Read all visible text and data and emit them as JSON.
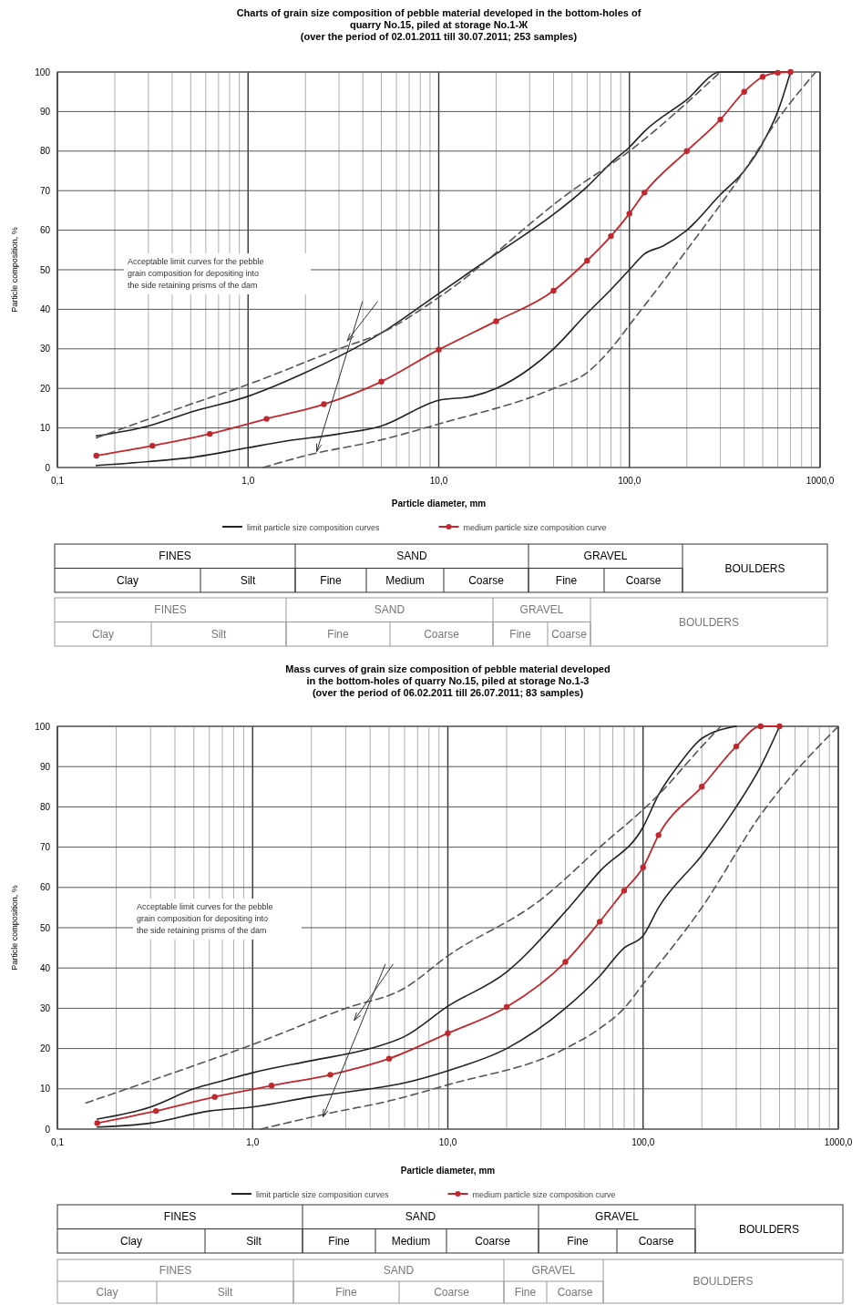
{
  "chart_data": [
    {
      "type": "line",
      "title": "Charts of grain size composition of pebble material developed in the bottom-holes of quarry No.15, piled at storage No.1-Ж",
      "subtitle": "(over the period of 02.01.2011 till 30.07.2011; 253 samples)",
      "xlabel": "Particle diameter, mm",
      "ylabel": "Particle composition, %",
      "log": "x",
      "grid": true,
      "legend": "bottom",
      "xlim": [
        0.1,
        1000
      ],
      "ylim": [
        0,
        100
      ],
      "xticks": [
        {
          "value": 0.1,
          "label": "0,1"
        },
        {
          "value": 0.2,
          "label": null
        },
        {
          "value": 0.3,
          "label": null
        },
        {
          "value": 0.4,
          "label": null
        },
        {
          "value": 0.5,
          "label": null
        },
        {
          "value": 0.6,
          "label": null
        },
        {
          "value": 0.7,
          "label": null
        },
        {
          "value": 0.8,
          "label": null
        },
        {
          "value": 0.9,
          "label": null
        },
        {
          "value": 1,
          "label": "1,0"
        },
        {
          "value": 2,
          "label": null
        },
        {
          "value": 3,
          "label": null
        },
        {
          "value": 4,
          "label": null
        },
        {
          "value": 5,
          "label": null
        },
        {
          "value": 6,
          "label": null
        },
        {
          "value": 7,
          "label": null
        },
        {
          "value": 8,
          "label": null
        },
        {
          "value": 9,
          "label": null
        },
        {
          "value": 10,
          "label": "10,0"
        },
        {
          "value": 20,
          "label": null
        },
        {
          "value": 30,
          "label": null
        },
        {
          "value": 40,
          "label": null
        },
        {
          "value": 50,
          "label": null
        },
        {
          "value": 60,
          "label": null
        },
        {
          "value": 70,
          "label": null
        },
        {
          "value": 80,
          "label": null
        },
        {
          "value": 90,
          "label": null
        },
        {
          "value": 100,
          "label": "100,0"
        },
        {
          "value": 200,
          "label": null
        },
        {
          "value": 300,
          "label": null
        },
        {
          "value": 400,
          "label": null
        },
        {
          "value": 500,
          "label": null
        },
        {
          "value": 600,
          "label": null
        },
        {
          "value": 700,
          "label": null
        },
        {
          "value": 800,
          "label": null
        },
        {
          "value": 900,
          "label": null
        },
        {
          "value": 1000,
          "label": "1000,0"
        }
      ],
      "yticks": [
        0,
        10,
        20,
        30,
        40,
        50,
        60,
        70,
        80,
        90,
        100
      ],
      "annotations": [
        "Acceptable limit curves for the pebble grain composition for depositing into the side retaining prisms of the dam"
      ],
      "series": [
        {
          "name": "limit particle size composition curves",
          "color": "#222222",
          "line_style": "solid",
          "marker": "none",
          "x": [
            0.16,
            0.3,
            0.5,
            1,
            2,
            5,
            10,
            20,
            40,
            60,
            80,
            100,
            120,
            200,
            300,
            700
          ],
          "values": [
            8,
            10.5,
            14,
            18,
            24,
            34,
            44,
            54,
            64,
            71,
            77,
            81,
            85,
            93,
            100,
            100
          ]
        },
        {
          "color": "#222222",
          "line_style": "solid",
          "marker": "none",
          "x": [
            0.16,
            0.3,
            0.5,
            1,
            1.5,
            3,
            5,
            10,
            15,
            20,
            30,
            40,
            60,
            80,
            100,
            120,
            150,
            200,
            300,
            400,
            500,
            600,
            700
          ],
          "values": [
            0.5,
            1.5,
            2.5,
            5,
            6.5,
            8.5,
            10.5,
            17,
            18,
            20,
            25,
            30,
            39,
            45,
            50,
            54,
            56,
            60,
            69,
            75,
            82,
            90,
            100
          ]
        },
        {
          "color": "#555555",
          "line_style": "dashed",
          "marker": "none",
          "x": [
            0.16,
            0.5,
            1,
            3,
            5,
            10,
            50,
            100,
            300
          ],
          "values": [
            7.5,
            16,
            21,
            30,
            34,
            43,
            70,
            80,
            100
          ]
        },
        {
          "color": "#555555",
          "line_style": "dashed",
          "marker": "none",
          "x": [
            1.2,
            2,
            5,
            10,
            40,
            60,
            80,
            100,
            200,
            400,
            600,
            950
          ],
          "values": [
            0,
            3,
            7,
            11,
            20,
            24,
            30,
            36,
            55,
            75,
            88,
            100
          ]
        },
        {
          "name": "medium particle size composition curve",
          "color": "#c0282d",
          "line_style": "solid",
          "marker": "circle",
          "x": [
            0.16,
            0.315,
            0.63,
            1.25,
            2.5,
            5,
            10,
            20,
            40,
            60,
            80,
            100,
            120,
            200,
            300,
            400,
            500,
            600,
            700
          ],
          "values": [
            3,
            5.5,
            8.5,
            12.3,
            16,
            21.7,
            29.8,
            37,
            44.7,
            52.3,
            58.5,
            64.2,
            69.5,
            80,
            88,
            95,
            98.8,
            99.8,
            100
          ]
        }
      ]
    },
    {
      "type": "other",
      "annotations": [
        "FINES",
        "SAND",
        "GRAVEL",
        "BOULDERS",
        "Clay",
        "Silt",
        "Fine",
        "Medium",
        "Coarse",
        "Fine",
        "Coarse"
      ]
    },
    {
      "type": "other",
      "annotations": [
        "FINES",
        "SAND",
        "GRAVEL",
        "BOULDERS",
        "Clay",
        "Silt",
        "Fine",
        "Coarse",
        "Fine",
        "Coarse"
      ]
    },
    {
      "type": "line",
      "title": "Mass curves of grain size composition of pebble material developed in the bottom-holes of quarry No.15, piled at storage No.1-3",
      "subtitle": "(over the period of 06.02.2011 till 26.07.2011; 83 samples)",
      "xlabel": "Particle diameter, mm",
      "ylabel": "Particle composition, %",
      "log": "x",
      "grid": true,
      "legend": "bottom",
      "xlim": [
        0.1,
        1000
      ],
      "ylim": [
        0,
        100
      ],
      "xticks": [
        {
          "value": 0.1,
          "label": "0,1"
        },
        {
          "value": 0.2,
          "label": null
        },
        {
          "value": 0.3,
          "label": null
        },
        {
          "value": 0.4,
          "label": null
        },
        {
          "value": 0.5,
          "label": null
        },
        {
          "value": 0.6,
          "label": null
        },
        {
          "value": 0.7,
          "label": null
        },
        {
          "value": 0.8,
          "label": null
        },
        {
          "value": 0.9,
          "label": null
        },
        {
          "value": 1,
          "label": "1,0"
        },
        {
          "value": 2,
          "label": null
        },
        {
          "value": 3,
          "label": null
        },
        {
          "value": 4,
          "label": null
        },
        {
          "value": 5,
          "label": null
        },
        {
          "value": 6,
          "label": null
        },
        {
          "value": 7,
          "label": null
        },
        {
          "value": 8,
          "label": null
        },
        {
          "value": 9,
          "label": null
        },
        {
          "value": 10,
          "label": "10,0"
        },
        {
          "value": 20,
          "label": null
        },
        {
          "value": 30,
          "label": null
        },
        {
          "value": 40,
          "label": null
        },
        {
          "value": 50,
          "label": null
        },
        {
          "value": 60,
          "label": null
        },
        {
          "value": 70,
          "label": null
        },
        {
          "value": 80,
          "label": null
        },
        {
          "value": 90,
          "label": null
        },
        {
          "value": 100,
          "label": "100,0"
        },
        {
          "value": 200,
          "label": null
        },
        {
          "value": 300,
          "label": null
        },
        {
          "value": 400,
          "label": null
        },
        {
          "value": 500,
          "label": null
        },
        {
          "value": 600,
          "label": null
        },
        {
          "value": 700,
          "label": null
        },
        {
          "value": 800,
          "label": null
        },
        {
          "value": 900,
          "label": null
        },
        {
          "value": 1000,
          "label": "1000,0"
        }
      ],
      "yticks": [
        0,
        10,
        20,
        30,
        40,
        50,
        60,
        70,
        80,
        90,
        100
      ],
      "annotations": [
        "Acceptable limit curves for the pebble grain composition for depositing into the side retaining prisms of the dam"
      ],
      "series": [
        {
          "name": "limit particle size composition curves",
          "color": "#222222",
          "line_style": "solid",
          "marker": "none",
          "x": [
            0.16,
            0.3,
            0.5,
            0.7,
            1,
            2,
            4,
            6,
            10,
            20,
            40,
            60,
            100,
            120,
            150,
            200,
            300
          ],
          "values": [
            2.5,
            5.5,
            10,
            12,
            14,
            17,
            20,
            23,
            30.5,
            39,
            54,
            64,
            75,
            83,
            90,
            97,
            100
          ]
        },
        {
          "color": "#222222",
          "line_style": "solid",
          "marker": "none",
          "x": [
            0.16,
            0.3,
            0.6,
            1,
            2,
            4,
            6,
            10,
            20,
            40,
            60,
            80,
            100,
            120,
            200,
            300,
            400,
            500
          ],
          "values": [
            0.5,
            1.5,
            4.5,
            5.5,
            8,
            10,
            11.5,
            14.5,
            20,
            30,
            38,
            45,
            48,
            55,
            68,
            80,
            90,
            100
          ]
        },
        {
          "color": "#555555",
          "line_style": "dashed",
          "marker": "none",
          "x": [
            0.14,
            0.3,
            1,
            3,
            6,
            10,
            30,
            60,
            120,
            200,
            250
          ],
          "values": [
            6.5,
            12,
            21,
            30,
            35,
            43,
            57,
            70,
            83,
            95,
            100
          ]
        },
        {
          "color": "#555555",
          "line_style": "dashed",
          "marker": "none",
          "x": [
            1.1,
            2.5,
            5,
            10,
            40,
            60,
            80,
            100,
            200,
            400,
            1000
          ],
          "values": [
            0,
            4,
            7,
            11,
            20,
            25,
            30,
            36,
            55,
            78,
            100
          ]
        },
        {
          "name": "medium particle size composition curve",
          "color": "#c0282d",
          "line_style": "solid",
          "marker": "circle",
          "x": [
            0.16,
            0.32,
            0.64,
            1.25,
            2.5,
            5,
            10,
            20,
            40,
            60,
            80,
            100,
            120,
            200,
            300,
            400,
            500
          ],
          "values": [
            1.5,
            4.5,
            8,
            10.8,
            13.5,
            17.5,
            23.8,
            30.3,
            41.5,
            51.5,
            59.2,
            65,
            73,
            85,
            95,
            100,
            100
          ]
        }
      ]
    },
    {
      "type": "other",
      "annotations": [
        "FINES",
        "SAND",
        "GRAVEL",
        "BOULDERS",
        "Clay",
        "Silt",
        "Fine",
        "Medium",
        "Coarse",
        "Fine",
        "Coarse"
      ]
    },
    {
      "type": "other",
      "annotations": [
        "FINES",
        "SAND",
        "GRAVEL",
        "BOULDERS",
        "Clay",
        "Silt",
        "Fine",
        "Coarse",
        "Fine",
        "Coarse"
      ]
    }
  ]
}
